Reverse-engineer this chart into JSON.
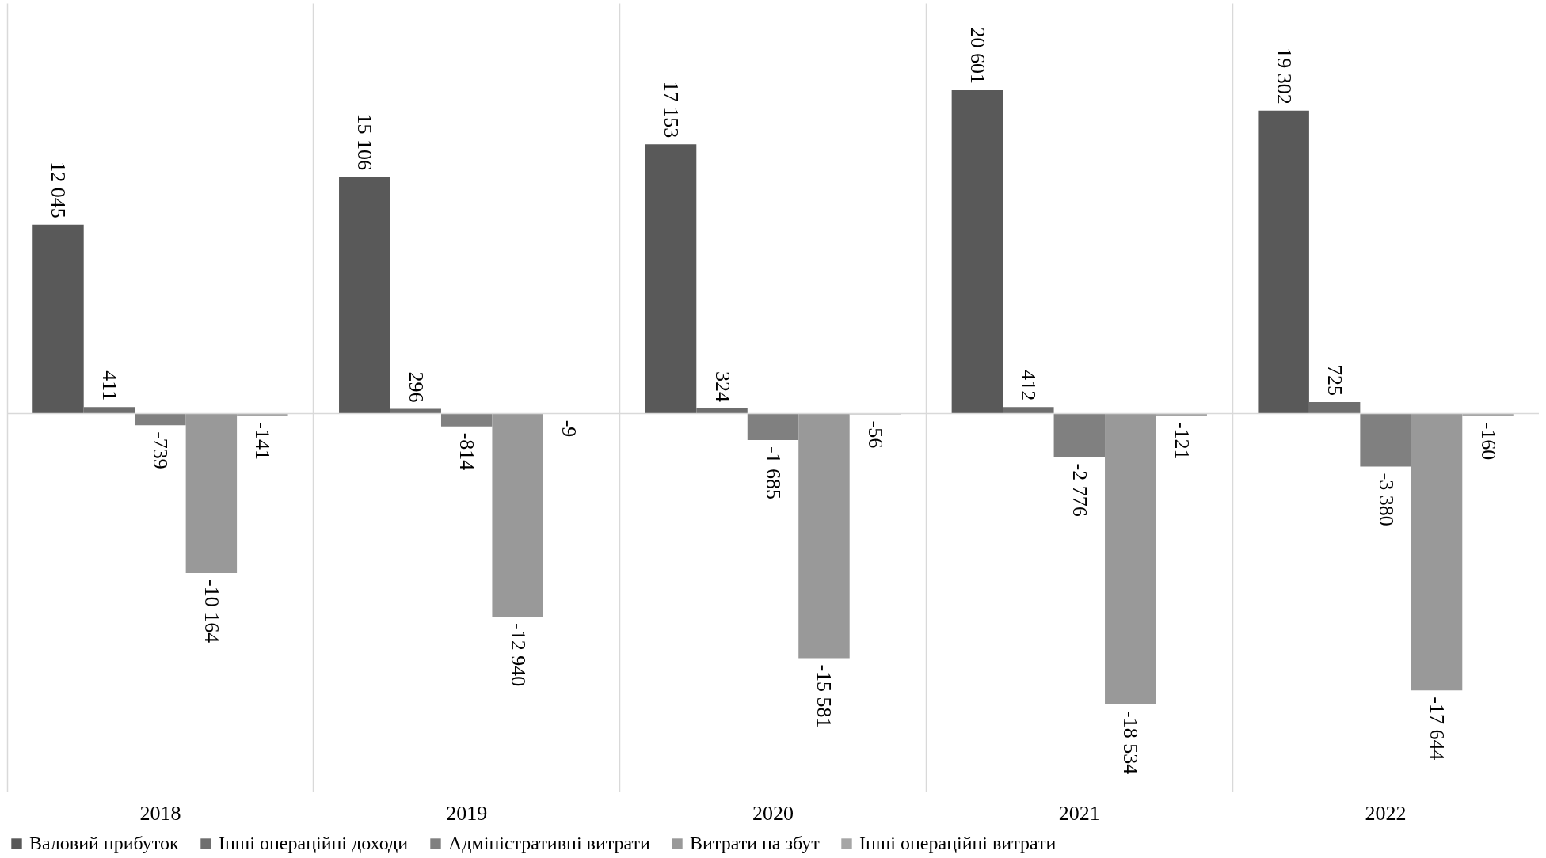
{
  "chart_data": {
    "type": "bar",
    "categories": [
      "2018",
      "2019",
      "2020",
      "2021",
      "2022"
    ],
    "series": [
      {
        "name": "Валовий прибуток",
        "color": "#595959",
        "values": [
          12045,
          15106,
          17153,
          20601,
          19302
        ],
        "value_labels": [
          "12 045",
          "15 106",
          "17 153",
          "20 601",
          "19 302"
        ]
      },
      {
        "name": "Інші операційні доходи",
        "color": "#6e6e6e",
        "values": [
          411,
          296,
          324,
          412,
          725
        ],
        "value_labels": [
          "411",
          "296",
          "324",
          "412",
          "725"
        ]
      },
      {
        "name": "Адміністративні витрати",
        "color": "#808080",
        "values": [
          -739,
          -814,
          -1685,
          -2776,
          -3380
        ],
        "value_labels": [
          "-739",
          "-814",
          "-1 685",
          "-2 776",
          "-3 380"
        ]
      },
      {
        "name": "Витрати на збут",
        "color": "#999999",
        "values": [
          -10164,
          -12940,
          -15581,
          -18534,
          -17644
        ],
        "value_labels": [
          "-10 164",
          "-12 940",
          "-15 581",
          "-18 534",
          "-17 644"
        ]
      },
      {
        "name": "Інші операційні витрати",
        "color": "#a6a6a6",
        "values": [
          -141,
          -9,
          -56,
          -121,
          -160
        ],
        "value_labels": [
          "-141",
          "-9",
          "-56",
          "-121",
          "-160"
        ]
      }
    ],
    "ref_lines": [
      {
        "axis": "y",
        "value": 0
      }
    ],
    "grid": "x",
    "legend": "bottom"
  }
}
